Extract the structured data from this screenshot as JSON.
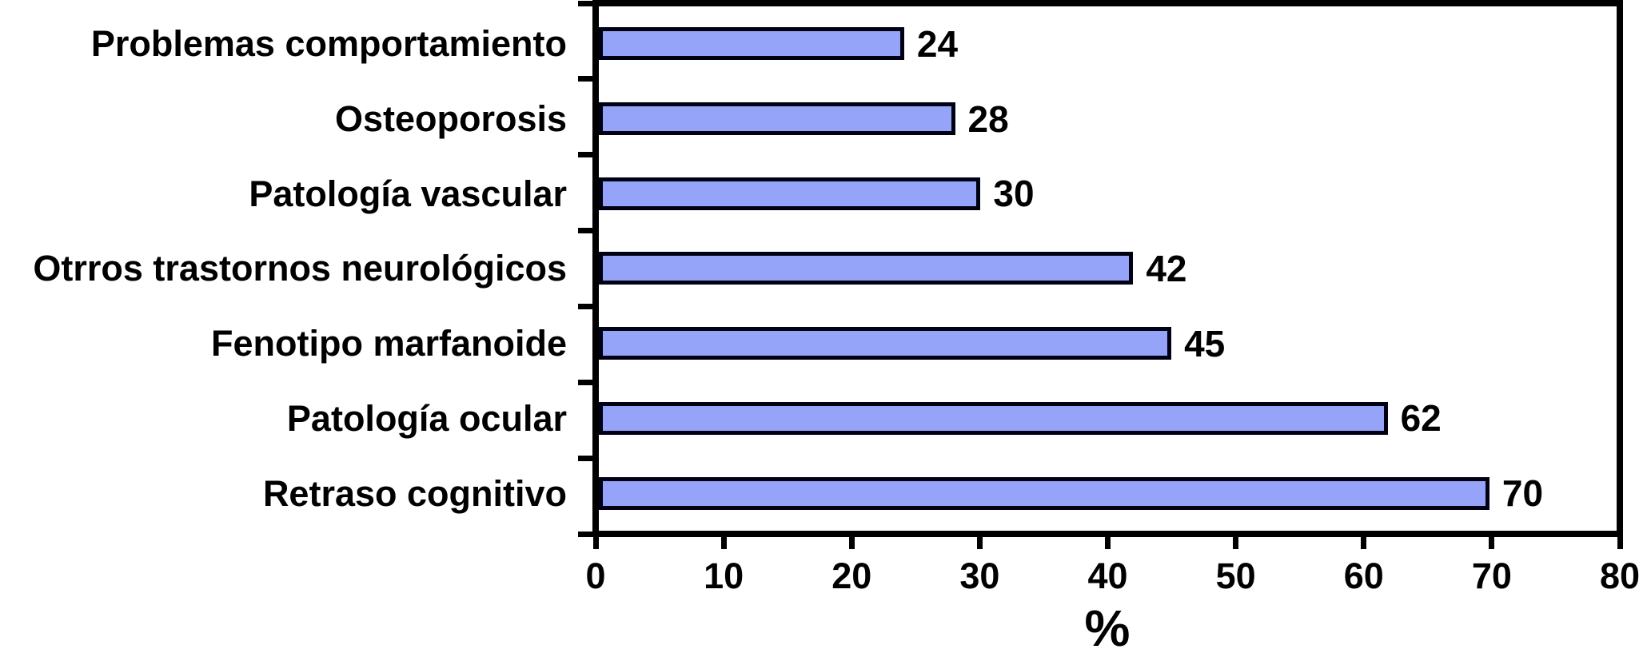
{
  "chart_data": {
    "type": "bar",
    "orientation": "horizontal",
    "title": "",
    "xlabel": "%",
    "ylabel": "",
    "categories": [
      "Problemas comportamiento",
      "Osteoporosis",
      "Patología vascular",
      "Otrros trastornos neurológicos",
      "Fenotipo marfanoide",
      "Patología ocular",
      "Retraso cognitivo"
    ],
    "values": [
      24,
      28,
      30,
      42,
      45,
      62,
      70
    ],
    "value_labels": [
      "24",
      "28",
      "30",
      "42",
      "45",
      "62",
      "70"
    ],
    "xlim": [
      0,
      80
    ],
    "x_ticks": [
      "0",
      "10",
      "20",
      "30",
      "40",
      "50",
      "60",
      "70",
      "80"
    ],
    "grid": false,
    "legend": null,
    "colors": {
      "bar_fill": "#95a4f8",
      "bar_border": "#010114",
      "axis": "#000000",
      "text": "#000000",
      "background": "#ffffff"
    }
  }
}
